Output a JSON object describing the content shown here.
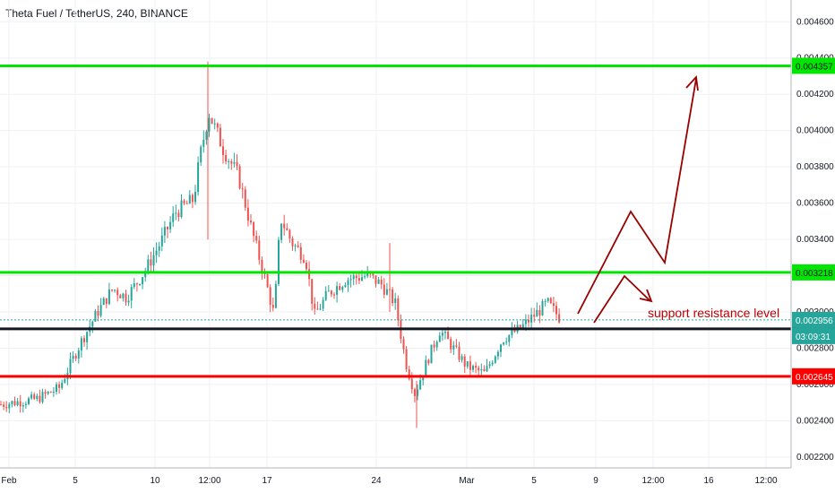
{
  "header": {
    "title": "Theta Fuel / TetherUS, 240, BINANCE"
  },
  "colors": {
    "up": "#26a69a",
    "down": "#ef5350",
    "green_line": "#00e600",
    "red_line": "#ff0000",
    "black_line": "#131722",
    "annotation": "#990000",
    "last_price": "#26a69a"
  },
  "chart_data": {
    "type": "candlestick",
    "title": "Theta Fuel / TetherUS, 240, BINANCE",
    "x_ticks": [
      "Feb",
      "5",
      "10",
      "12:00",
      "17",
      "24",
      "Mar",
      "5",
      "9",
      "12:00",
      "16",
      "12:00"
    ],
    "y_ticks": [
      "0.004600",
      "0.004400",
      "0.004200",
      "0.004000",
      "0.003800",
      "0.003600",
      "0.003400",
      "0.003200",
      "0.003000",
      "0.002800",
      "0.002600",
      "0.002400",
      "0.002200"
    ],
    "ylim": [
      0.00214,
      0.00472
    ],
    "horizontal_levels": [
      {
        "label": "0.004357",
        "value": 0.004357,
        "color": "#00e600"
      },
      {
        "label": "0.003218",
        "value": 0.003218,
        "color": "#00e600"
      },
      {
        "label": "0.002907",
        "value": 0.002907,
        "color": "#131722"
      },
      {
        "label": "0.002645",
        "value": 0.002645,
        "color": "#ff0000"
      }
    ],
    "last_price": {
      "label": "0.002956",
      "value": 0.002956,
      "countdown": "03:09:31"
    },
    "annotation": "support resistance level",
    "series": [
      {
        "name": "THETA FUEL/USDT",
        "anchors": [
          {
            "t": 0,
            "v": 0.00249
          },
          {
            "t": 40,
            "v": 0.00252
          },
          {
            "t": 65,
            "v": 0.00258
          },
          {
            "t": 90,
            "v": 0.00284
          },
          {
            "t": 108,
            "v": 0.003
          },
          {
            "t": 125,
            "v": 0.00313
          },
          {
            "t": 140,
            "v": 0.00308
          },
          {
            "t": 160,
            "v": 0.00322
          },
          {
            "t": 178,
            "v": 0.00338
          },
          {
            "t": 195,
            "v": 0.00355
          },
          {
            "t": 215,
            "v": 0.00362
          },
          {
            "t": 222,
            "v": 0.00385
          },
          {
            "t": 232,
            "v": 0.0041
          },
          {
            "t": 248,
            "v": 0.0039
          },
          {
            "t": 265,
            "v": 0.00375
          },
          {
            "t": 280,
            "v": 0.00345
          },
          {
            "t": 295,
            "v": 0.00318
          },
          {
            "t": 305,
            "v": 0.00298
          },
          {
            "t": 312,
            "v": 0.00352
          },
          {
            "t": 325,
            "v": 0.00338
          },
          {
            "t": 340,
            "v": 0.0033
          },
          {
            "t": 350,
            "v": 0.00298
          },
          {
            "t": 365,
            "v": 0.0031
          },
          {
            "t": 385,
            "v": 0.00318
          },
          {
            "t": 410,
            "v": 0.0032
          },
          {
            "t": 425,
            "v": 0.00315
          },
          {
            "t": 440,
            "v": 0.00305
          },
          {
            "t": 452,
            "v": 0.00272
          },
          {
            "t": 462,
            "v": 0.00255
          },
          {
            "t": 475,
            "v": 0.00272
          },
          {
            "t": 490,
            "v": 0.0029
          },
          {
            "t": 505,
            "v": 0.0028
          },
          {
            "t": 520,
            "v": 0.0027
          },
          {
            "t": 540,
            "v": 0.00266
          },
          {
            "t": 560,
            "v": 0.00285
          },
          {
            "t": 580,
            "v": 0.00291
          },
          {
            "t": 595,
            "v": 0.00298
          },
          {
            "t": 610,
            "v": 0.00305
          },
          {
            "t": 625,
            "v": 0.00296
          }
        ]
      }
    ]
  }
}
